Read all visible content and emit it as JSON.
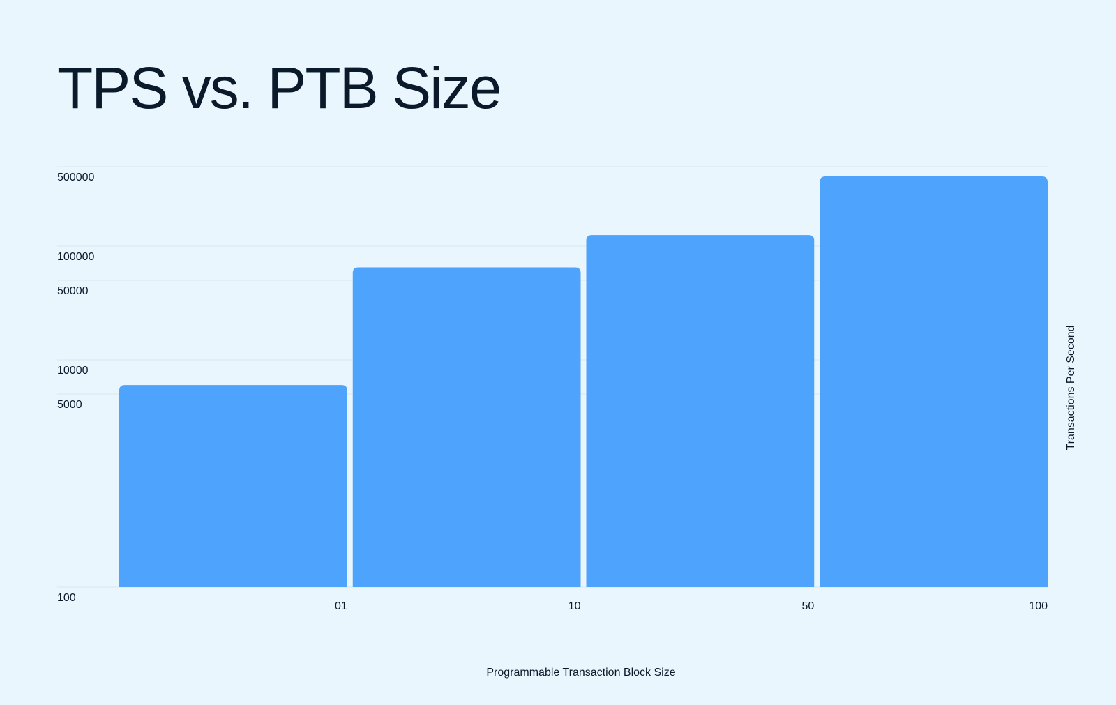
{
  "chart_data": {
    "type": "bar",
    "title": "TPS vs. PTB Size",
    "xlabel": "Programmable Transaction Block Size",
    "ylabel": "Transactions Per Second",
    "y_scale": "log",
    "ylim": [
      100,
      500000
    ],
    "y_ticks": [
      100,
      5000,
      10000,
      50000,
      100000,
      500000
    ],
    "y_tick_labels": [
      "100",
      "5000",
      "10000",
      "50000",
      "100000",
      "500000"
    ],
    "categories": [
      "01",
      "10",
      "50",
      "100"
    ],
    "values": [
      6000,
      65000,
      125000,
      410000
    ],
    "grid": true,
    "colors": {
      "bar": "#4ea3fd",
      "background": "#eaf6fe",
      "grid": "#d6e6f2",
      "text": "#0b1a2b"
    }
  }
}
